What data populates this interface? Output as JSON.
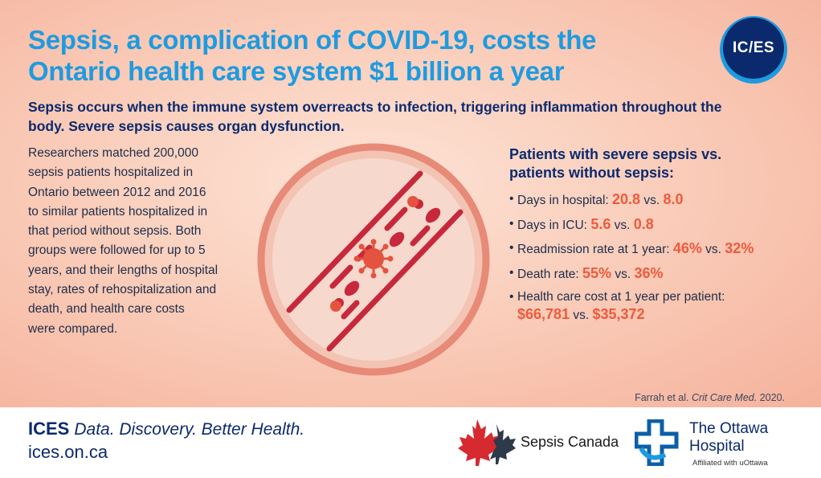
{
  "title": {
    "line1": "Sepsis, a complication of COVID-19, costs the",
    "line2": "Ontario health care system $1 billion a year"
  },
  "logo_text": "IC/ES",
  "subtitle": "Sepsis occurs when the immune system overreacts to infection, triggering inflammation throughout the body. Severe sepsis causes organ dysfunction.",
  "body_lines": [
    "Researchers matched 200,000",
    "sepsis patients hospitalized in",
    "Ontario between 2012 and 2016",
    "to similar patients hospitalized in",
    "that period without sepsis. Both",
    "groups were followed for up to 5",
    "years, and their lengths of hospital",
    "stay, rates of rehospitalization and",
    "death, and health care costs",
    "were compared."
  ],
  "stats_heading": {
    "line1": "Patients with severe sepsis vs.",
    "line2": "patients without sepsis:"
  },
  "stats": [
    {
      "label": "Days in hospital: ",
      "a": "20.8",
      "vs": " vs. ",
      "b": "8.0"
    },
    {
      "label": "Days in ICU: ",
      "a": "5.6",
      "vs": " vs. ",
      "b": "0.8"
    },
    {
      "label": "Readmission rate at 1 year: ",
      "a": "46%",
      "vs": " vs. ",
      "b": "32%"
    },
    {
      "label": "Death rate: ",
      "a": "55%",
      "vs": " vs. ",
      "b": "36%"
    },
    {
      "label": "Health care cost at 1 year per patient:",
      "a": "$66,781",
      "vs": " vs. ",
      "b": "$35,372"
    }
  ],
  "citation": {
    "authors": "Farrah et al. ",
    "journal": "Crit Care Med.",
    "year": " 2020."
  },
  "footer": {
    "brand": "ICES",
    "tagline": "Data. Discovery. Better Health.",
    "url": "ices.on.ca",
    "partner1": "Sepsis Canada",
    "partner2_line1": "The Ottawa",
    "partner2_line2": "Hospital",
    "partner2_affiliation": "Affiliated with uOttawa"
  },
  "colors": {
    "title_blue": "#1e9be0",
    "navy": "#0b2a6e",
    "accent_red": "#ef5a3c",
    "illustration_red": "#c8283c"
  },
  "icons": [
    "ices-logo",
    "blood-vessel-virus-illustration",
    "maple-leaf-icon",
    "ottawa-hospital-cross-icon"
  ]
}
